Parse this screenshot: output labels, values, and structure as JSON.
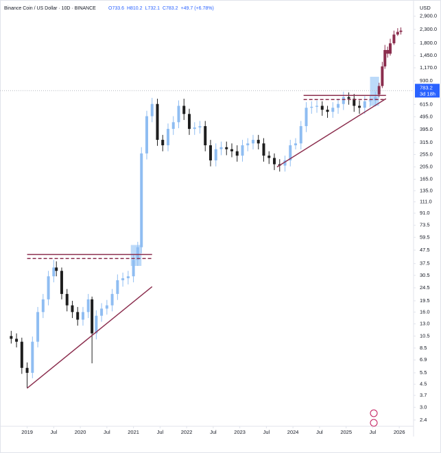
{
  "chart_data": {
    "type": "candlestick",
    "title": "Binance Coin / US Dollar · 10D · BINANCE",
    "ohlc_legend": [
      "O733.6",
      "H810.2",
      "L732.1",
      "C783.2",
      "+49.7 (+6.78%)"
    ],
    "y_axis_unit": "USD",
    "log_scale": true,
    "grid": false,
    "xlim": [
      2018.67,
      2026.23
    ],
    "ylim": [
      2.15,
      3500
    ],
    "xticks": [
      2019,
      {
        "value": 2019.5,
        "label": "Jul"
      },
      2020,
      {
        "value": 2020.5,
        "label": "Jul"
      },
      2021,
      {
        "value": 2021.5,
        "label": "Jul"
      },
      2022,
      {
        "value": 2022.5,
        "label": "Jul"
      },
      2023,
      {
        "value": 2023.5,
        "label": "Jul"
      },
      2024,
      {
        "value": 2024.5,
        "label": "Jul"
      },
      2025,
      {
        "value": 2025.5,
        "label": "Jul"
      },
      2026
    ],
    "yticks": [
      2.4,
      {
        "value": 3.0,
        "label": "3.0"
      },
      3.7,
      4.5,
      5.5,
      6.9,
      8.5,
      10.5,
      {
        "value": 13.0,
        "label": "13.0"
      },
      {
        "value": 16.0,
        "label": "16.0"
      },
      19.5,
      24.5,
      30.5,
      37.5,
      47.5,
      59.5,
      73.5,
      {
        "value": 91.0,
        "label": "91.0"
      },
      {
        "value": 111.0,
        "label": "111.0"
      },
      {
        "value": 135.0,
        "label": "135.0"
      },
      {
        "value": 165.0,
        "label": "165.0"
      },
      {
        "value": 205.0,
        "label": "205.0"
      },
      {
        "value": 255.0,
        "label": "255.0"
      },
      {
        "value": 315.0,
        "label": "315.0"
      },
      {
        "value": 395.0,
        "label": "395.0"
      },
      {
        "value": 495.0,
        "label": "495.0"
      },
      {
        "value": 615.0,
        "label": "615.0"
      },
      {
        "value": 930.0,
        "label": "930.0"
      },
      {
        "value": 1170,
        "label": "1,170.0"
      },
      {
        "value": 1450,
        "label": "1,450.0"
      },
      {
        "value": 1800,
        "label": "1,800.0"
      },
      {
        "value": 2300,
        "label": "2,300.0"
      },
      {
        "value": 2900,
        "label": "2,900.0"
      }
    ],
    "last_price": 783.2,
    "countdown": "3d 18h",
    "last_price_color": "#2962ff",
    "series": [
      {
        "color_up": "#8fbdf2",
        "color_down": "#1e1e1e",
        "x": [
          2018.7,
          2018.8,
          2018.9,
          2019.0,
          2019.1,
          2019.2,
          2019.3,
          2019.4,
          2019.5,
          2019.55,
          2019.65,
          2019.75,
          2019.85,
          2019.95,
          2020.05,
          2020.15,
          2020.22,
          2020.3,
          2020.4,
          2020.5,
          2020.6,
          2020.7,
          2020.8,
          2020.9,
          2021.0,
          2021.08,
          2021.15,
          2021.25,
          2021.35,
          2021.45,
          2021.55,
          2021.65,
          2021.75,
          2021.85,
          2021.95,
          2022.05,
          2022.15,
          2022.25,
          2022.35,
          2022.45,
          2022.55,
          2022.65,
          2022.75,
          2022.85,
          2022.95,
          2023.05,
          2023.15,
          2023.25,
          2023.35,
          2023.45,
          2023.55,
          2023.65,
          2023.75,
          2023.85,
          2023.95,
          2024.05,
          2024.15,
          2024.25,
          2024.35,
          2024.45,
          2024.55,
          2024.65,
          2024.75,
          2024.85,
          2024.95,
          2025.05,
          2025.15,
          2025.25,
          2025.35,
          2025.45,
          2025.55
        ],
        "open": [
          10.5,
          10,
          9.5,
          6,
          5.5,
          9.5,
          16,
          20,
          30,
          35,
          33,
          22,
          18,
          16,
          14,
          16,
          20,
          11,
          15,
          17,
          18,
          22,
          28,
          29,
          30,
          40,
          50,
          260,
          500,
          620,
          330,
          300,
          400,
          450,
          600,
          520,
          400,
          410,
          420,
          300,
          230,
          280,
          290,
          280,
          270,
          250,
          300,
          310,
          330,
          310,
          250,
          240,
          215,
          210,
          230,
          300,
          310,
          420,
          580,
          590,
          600,
          560,
          540,
          580,
          620,
          700,
          680,
          600,
          580,
          650,
          660
        ],
        "high": [
          11.5,
          11,
          10.2,
          6.6,
          10.4,
          17.5,
          22,
          33,
          40,
          39,
          35,
          24,
          19.5,
          17.5,
          17.5,
          22,
          21,
          16.5,
          18.7,
          19.8,
          24,
          31,
          32,
          33,
          44,
          55,
          290,
          550,
          690,
          680,
          360,
          440,
          500,
          660,
          680,
          570,
          450,
          460,
          460,
          330,
          310,
          320,
          320,
          310,
          300,
          330,
          340,
          360,
          360,
          340,
          270,
          260,
          235,
          250,
          330,
          340,
          460,
          640,
          650,
          660,
          650,
          600,
          640,
          680,
          770,
          760,
          740,
          660,
          710,
          720,
          770
        ],
        "low": [
          9.2,
          8.6,
          5.4,
          4.2,
          5,
          8.6,
          14.4,
          18,
          27,
          30,
          20,
          16.2,
          14.4,
          12.6,
          12.6,
          14.4,
          6.5,
          9.9,
          13.5,
          15.3,
          16.2,
          19.8,
          25,
          26,
          27,
          36,
          45,
          234,
          450,
          297,
          270,
          270,
          360,
          405,
          468,
          360,
          360,
          369,
          270,
          207,
          207,
          252,
          252,
          243,
          225,
          225,
          270,
          279,
          279,
          225,
          216,
          194,
          189,
          189,
          207,
          279,
          279,
          378,
          522,
          531,
          504,
          486,
          486,
          522,
          558,
          612,
          540,
          522,
          522,
          585,
          594
        ],
        "close": [
          10,
          9.5,
          6,
          5.5,
          9.5,
          16,
          20,
          30,
          35,
          33,
          22,
          18,
          16,
          14,
          16,
          20,
          11,
          15,
          17,
          18,
          22,
          28,
          29,
          30,
          40,
          50,
          260,
          500,
          620,
          330,
          300,
          400,
          450,
          600,
          520,
          400,
          410,
          420,
          300,
          230,
          280,
          290,
          280,
          270,
          250,
          300,
          310,
          330,
          310,
          250,
          240,
          215,
          210,
          230,
          300,
          310,
          420,
          580,
          590,
          600,
          560,
          540,
          580,
          620,
          700,
          680,
          600,
          580,
          650,
          660,
          700
        ]
      },
      {
        "color_up": "#8b2e4e",
        "color_down": "#8b2e4e",
        "x": [
          2025.62,
          2025.68,
          2025.73,
          2025.78,
          2025.83,
          2025.9,
          2025.97,
          2026.03
        ],
        "open": [
          733.6,
          850,
          1200,
          1600,
          1500,
          1800,
          2100,
          2200
        ],
        "high": [
          900,
          1300,
          1750,
          1700,
          1950,
          2250,
          2350,
          2380
        ],
        "low": [
          700,
          820,
          1150,
          1400,
          1450,
          1750,
          2050,
          2100
        ],
        "close": [
          850,
          1200,
          1600,
          1500,
          1800,
          2100,
          2200,
          2250
        ]
      }
    ],
    "annotation_color": "#8b2e4e",
    "trendlines": [
      {
        "x": [
          2019.0,
          2021.35
        ],
        "y": [
          4.2,
          25
        ]
      },
      {
        "x": [
          2023.7,
          2025.75
        ],
        "y": [
          205,
          680
        ]
      }
    ],
    "resistance_lines": [
      {
        "x": [
          2019.0,
          2021.35
        ],
        "y": 44,
        "dashed": false
      },
      {
        "x": [
          2019.0,
          2021.35
        ],
        "y": 41,
        "dashed": true
      },
      {
        "x": [
          2024.2,
          2025.75
        ],
        "y": 720,
        "dashed": false
      },
      {
        "x": [
          2024.2,
          2025.75
        ],
        "y": 670,
        "dashed": true
      }
    ],
    "box_color": "#90c2f5",
    "boxes": [
      {
        "x": [
          2020.95,
          2021.15
        ],
        "y": [
          36,
          52
        ]
      },
      {
        "x": [
          2025.45,
          2025.62
        ],
        "y": [
          600,
          1000
        ]
      }
    ]
  }
}
